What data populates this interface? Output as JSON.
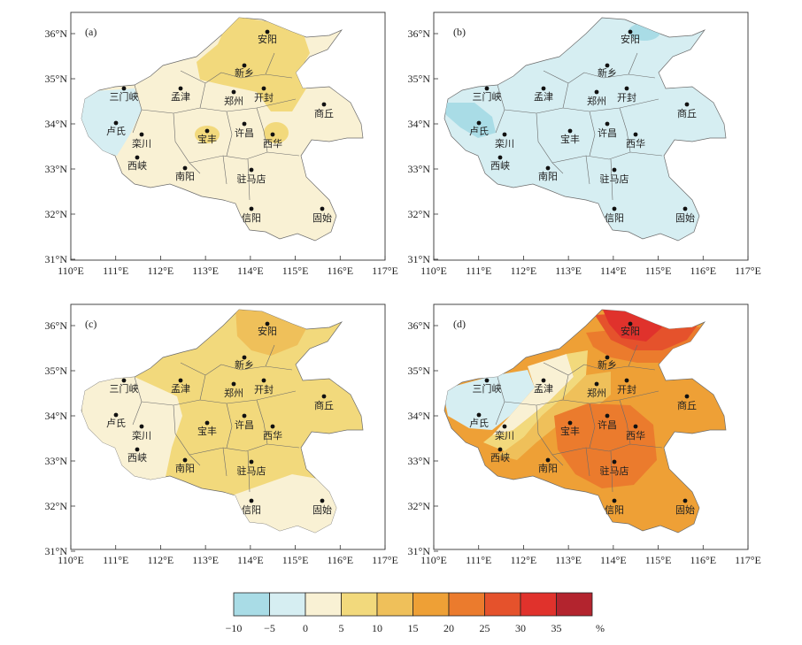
{
  "colorbar": {
    "boundaries": [
      "−10",
      "−5",
      "0",
      "5",
      "10",
      "15",
      "20",
      "25",
      "30",
      "35"
    ],
    "unit": "%",
    "colors": [
      "#a9dce6",
      "#d6eef2",
      "#f9f1d4",
      "#f2d97c",
      "#efc05a",
      "#eea036",
      "#eb7b2d",
      "#e5522c",
      "#e0322c",
      "#b3242e"
    ]
  },
  "axes": {
    "lon_labels": [
      "110°E",
      "111°E",
      "112°E",
      "113°E",
      "114°E",
      "115°E",
      "116°E",
      "117°E"
    ],
    "lat_labels": [
      "36°N",
      "35°N",
      "34°N",
      "33°N",
      "32°N",
      "31°N"
    ]
  },
  "cities": [
    "安阳",
    "新乡",
    "三门峡",
    "孟津",
    "郑州",
    "开封",
    "商丘",
    "卢氏",
    "栾川",
    "宝丰",
    "许昌",
    "西华",
    "西峡",
    "南阳",
    "驻马店",
    "信阳",
    "固始"
  ],
  "panels": [
    {
      "tag": "(a)",
      "base_fill": "#f9f1d4"
    },
    {
      "tag": "(b)",
      "base_fill": "#d6eef2"
    },
    {
      "tag": "(c)",
      "base_fill": "#f2d97c"
    },
    {
      "tag": "(d)",
      "base_fill": "#eea036"
    }
  ]
}
